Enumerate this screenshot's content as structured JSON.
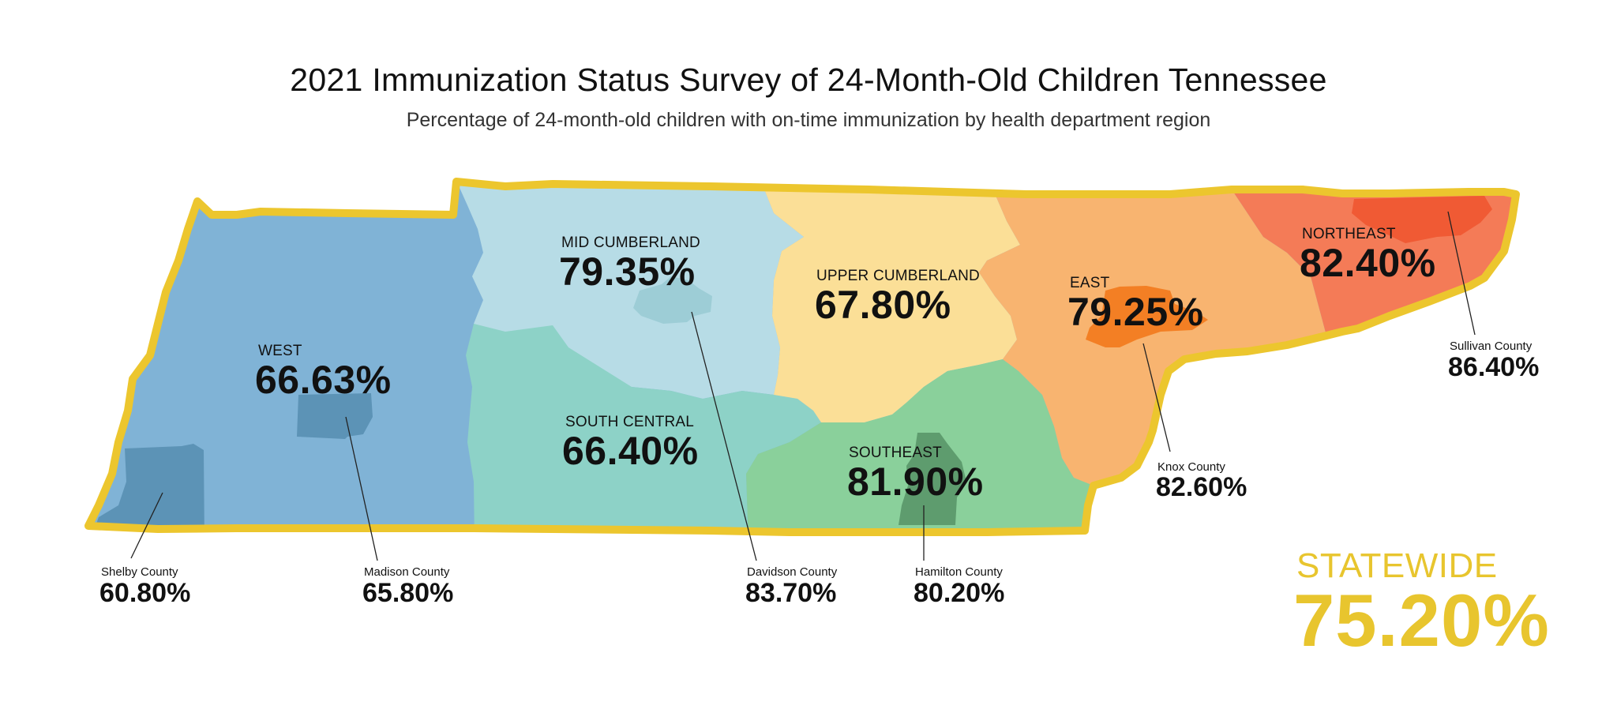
{
  "title": "2021 Immunization Status Survey of 24-Month-Old Children Tennessee",
  "subtitle": "Percentage of 24-month-old children with on-time immunization by health department region",
  "regions": [
    {
      "name": "WEST",
      "value": "66.63%",
      "color": "#80b3d6"
    },
    {
      "name": "MID CUMBERLAND",
      "value": "79.35%",
      "color": "#b7dce6"
    },
    {
      "name": "SOUTH CENTRAL",
      "value": "66.40%",
      "color": "#8dd2c7"
    },
    {
      "name": "UPPER CUMBERLAND",
      "value": "67.80%",
      "color": "#fbdf97"
    },
    {
      "name": "SOUTHEAST",
      "value": "81.90%",
      "color": "#8ad09b"
    },
    {
      "name": "EAST",
      "value": "79.25%",
      "color": "#f8b470"
    },
    {
      "name": "NORTHEAST",
      "value": "82.40%",
      "color": "#f47b57"
    }
  ],
  "counties": [
    {
      "name": "Shelby County",
      "value": "60.80%",
      "color": "#5c93b6"
    },
    {
      "name": "Madison County",
      "value": "65.80%",
      "color": "#5c93b6"
    },
    {
      "name": "Davidson County",
      "value": "83.70%",
      "color": "#9dcdd6"
    },
    {
      "name": "Hamilton County",
      "value": "80.20%",
      "color": "#5e9c6e"
    },
    {
      "name": "Knox County",
      "value": "82.60%",
      "color": "#f37f24"
    },
    {
      "name": "Sullivan County",
      "value": "86.40%",
      "color": "#f05a34"
    }
  ],
  "statewide": {
    "label": "STATEWIDE",
    "value": "75.20%",
    "color": "#e8c52e"
  },
  "border_color": "#ecc62e"
}
